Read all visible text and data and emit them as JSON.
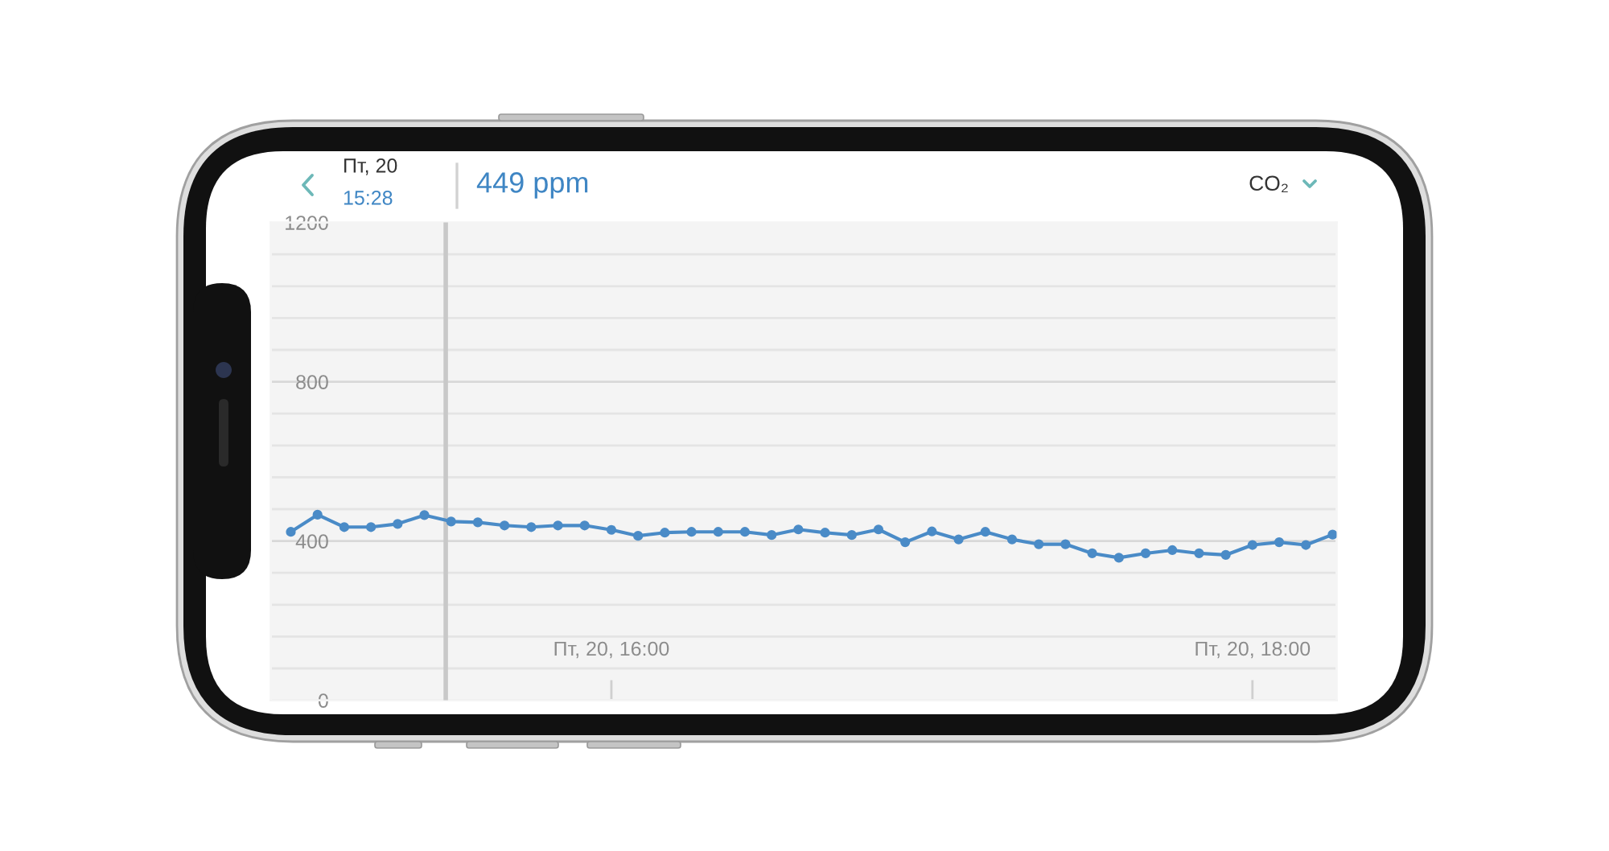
{
  "chart_data": {
    "type": "line",
    "title": "CO₂",
    "annotations": [
      "Пт, 20",
      "15:28",
      "449 ppm"
    ],
    "categories": [
      null,
      null,
      null,
      null,
      null,
      null,
      null,
      null,
      null,
      null,
      null,
      null,
      "Пт, 20, 16:00",
      null,
      null,
      null,
      null,
      null,
      null,
      null,
      null,
      null,
      null,
      null,
      null,
      null,
      null,
      null,
      null,
      null,
      null,
      null,
      null,
      null,
      null,
      null,
      "Пт, 20, 18:00",
      null,
      null,
      null
    ],
    "series": [
      {
        "color": "#4a8bc7",
        "values": [
          423,
          466,
          435,
          435,
          443,
          465,
          449,
          447,
          439,
          435,
          439,
          439,
          428,
          413,
          421,
          423,
          423,
          423,
          415,
          429,
          421,
          415,
          429,
          397,
          424,
          404,
          423,
          404,
          392,
          392,
          369,
          358,
          369,
          377,
          369,
          365,
          390,
          397,
          390,
          416
        ]
      }
    ],
    "ylim": [
      0,
      1200
    ],
    "yticks": [
      0,
      {
        "value": 80,
        "label": null
      },
      {
        "value": 160,
        "label": null
      },
      {
        "value": 240,
        "label": null
      },
      {
        "value": 320,
        "label": null
      },
      400,
      {
        "value": 480,
        "label": null
      },
      {
        "value": 560,
        "label": null
      },
      {
        "value": 640,
        "label": null
      },
      {
        "value": 720,
        "label": null
      },
      800,
      {
        "value": 880,
        "label": null
      },
      {
        "value": 960,
        "label": null
      },
      {
        "value": 1040,
        "label": null
      },
      {
        "value": 1120,
        "label": null
      },
      1200
    ],
    "grid": "y",
    "marker": "circle",
    "line_style": "solid"
  }
}
